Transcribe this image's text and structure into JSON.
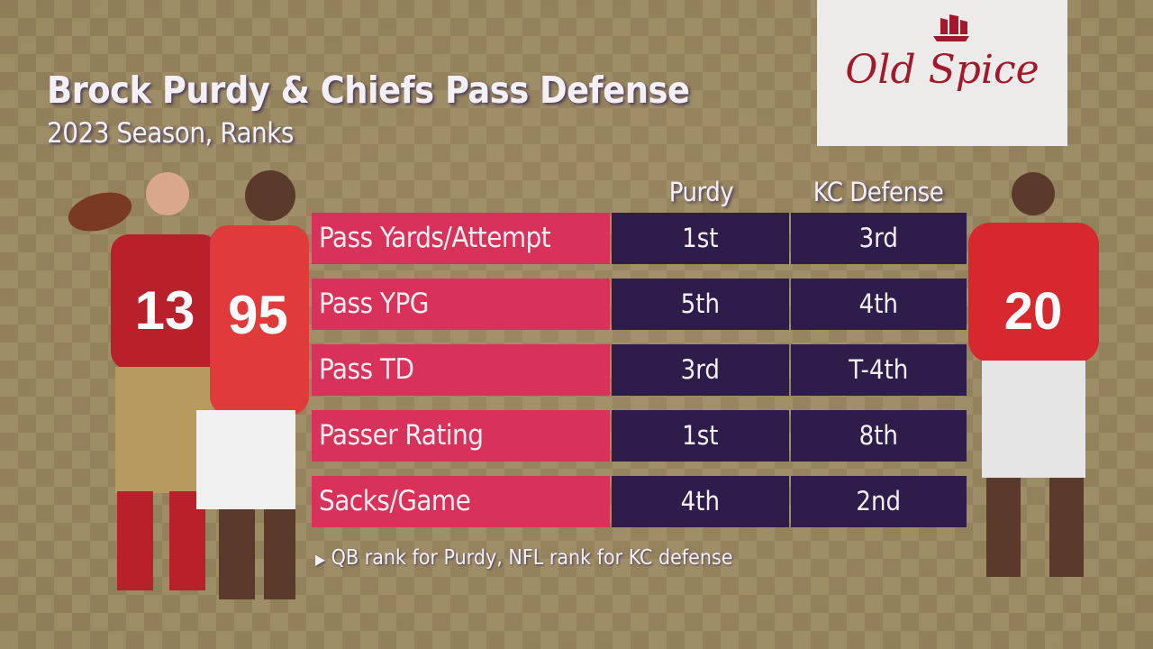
{
  "title": "Brock Purdy & Chiefs Pass Defense",
  "subtitle": "2023 Season, Ranks",
  "sponsor": {
    "logo_text": "Old Spice",
    "color": "#a5182b"
  },
  "columns": [
    "Purdy",
    "KC Defense"
  ],
  "rows": [
    {
      "label": "Pass Yards/Attempt",
      "purdy": "1st",
      "kc": "3rd"
    },
    {
      "label": "Pass YPG",
      "purdy": "5th",
      "kc": "4th"
    },
    {
      "label": "Pass TD",
      "purdy": "3rd",
      "kc": "T-4th"
    },
    {
      "label": "Passer Rating",
      "purdy": "1st",
      "kc": "8th"
    },
    {
      "label": "Sacks/Game",
      "purdy": "4th",
      "kc": "2nd"
    }
  ],
  "footnote": "QB rank for Purdy, NFL rank for KC defense",
  "colors": {
    "label_bg": "#d8325a",
    "value_bg": "#2e1d4a",
    "background": "#9a8862"
  }
}
